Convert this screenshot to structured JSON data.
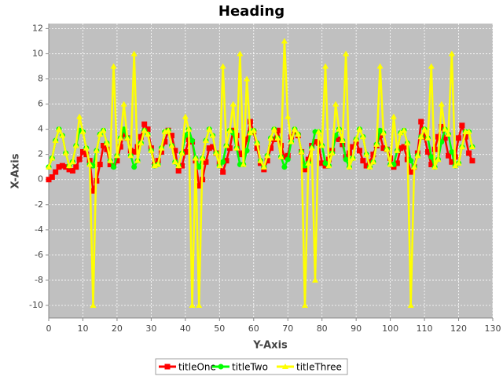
{
  "chart_data": {
    "type": "line",
    "title": "Heading",
    "x_label": "Y-Axis",
    "y_label": "X-Axis",
    "xlim": [
      0,
      130
    ],
    "xticks": [
      0,
      10,
      20,
      30,
      40,
      50,
      60,
      70,
      80,
      90,
      100,
      110,
      120,
      130
    ],
    "ylim": [
      -11,
      12.4
    ],
    "yticks": [
      -10,
      -8,
      -6,
      -4,
      -2,
      0,
      2,
      4,
      6,
      8,
      10,
      12
    ],
    "grid": true,
    "legend": "bottom",
    "x": [
      0,
      1,
      2,
      3,
      4,
      5,
      6,
      7,
      8,
      9,
      10,
      11,
      12,
      13,
      14,
      15,
      16,
      17,
      18,
      19,
      20,
      21,
      22,
      23,
      24,
      25,
      26,
      27,
      28,
      29,
      30,
      31,
      32,
      33,
      34,
      35,
      36,
      37,
      38,
      39,
      40,
      41,
      42,
      43,
      44,
      45,
      46,
      47,
      48,
      49,
      50,
      51,
      52,
      53,
      54,
      55,
      56,
      57,
      58,
      59,
      60,
      61,
      62,
      63,
      64,
      65,
      66,
      67,
      68,
      69,
      70,
      71,
      72,
      73,
      74,
      75,
      76,
      77,
      78,
      79,
      80,
      81,
      82,
      83,
      84,
      85,
      86,
      87,
      88,
      89,
      90,
      91,
      92,
      93,
      94,
      95,
      96,
      97,
      98,
      99,
      100,
      101,
      102,
      103,
      104,
      105,
      106,
      107,
      108,
      109,
      110,
      111,
      112,
      113,
      114,
      115,
      116,
      117,
      118,
      119,
      120,
      121,
      122,
      123,
      124
    ],
    "series": [
      {
        "name": "titleOne",
        "color": "#ff0000",
        "marker": "square",
        "values": [
          0.0,
          0.2,
          0.6,
          1.0,
          1.1,
          1.0,
          0.8,
          0.7,
          1.0,
          1.6,
          2.2,
          2.0,
          1.5,
          -0.9,
          -0.1,
          1.2,
          2.7,
          2.4,
          1.2,
          1.1,
          1.5,
          2.6,
          3.6,
          3.3,
          2.3,
          2.2,
          2.6,
          3.4,
          4.4,
          4.0,
          2.5,
          1.2,
          1.5,
          2.2,
          3.0,
          3.9,
          3.5,
          2.3,
          0.7,
          1.1,
          2.2,
          3.2,
          3.0,
          1.5,
          -0.5,
          0.0,
          1.4,
          2.5,
          2.6,
          2.1,
          1.3,
          0.6,
          1.5,
          2.5,
          3.9,
          3.5,
          2.0,
          2.1,
          3.2,
          4.6,
          3.8,
          2.5,
          1.3,
          0.8,
          1.5,
          2.5,
          3.2,
          3.9,
          2.7,
          1.8,
          1.9,
          3.4,
          3.8,
          3.5,
          2.2,
          0.8,
          1.6,
          2.7,
          3.0,
          2.9,
          1.3,
          1.1,
          1.6,
          2.3,
          3.3,
          3.2,
          2.8,
          1.8,
          2.1,
          2.6,
          3.0,
          2.3,
          1.5,
          1.1,
          1.4,
          2.0,
          2.7,
          3.5,
          2.5,
          2.4,
          1.7,
          1.0,
          1.3,
          2.5,
          2.6,
          1.6,
          0.6,
          1.0,
          2.1,
          4.6,
          3.4,
          2.2,
          1.2,
          2.4,
          3.4,
          4.2,
          3.3,
          1.9,
          1.4,
          1.8,
          3.3,
          4.3,
          3.4,
          2.1,
          1.5
        ]
      },
      {
        "name": "titleTwo",
        "color": "#00ff00",
        "marker": "circle",
        "values": [
          1.0,
          1.7,
          3.1,
          4.0,
          3.5,
          2.1,
          1.1,
          1.4,
          2.7,
          3.9,
          3.8,
          2.5,
          1.2,
          1.1,
          2.3,
          3.6,
          3.9,
          2.9,
          1.5,
          1.0,
          1.9,
          3.3,
          4.0,
          3.3,
          1.9,
          1.0,
          1.5,
          2.9,
          3.9,
          3.6,
          2.3,
          1.1,
          1.2,
          2.5,
          3.8,
          3.9,
          2.7,
          1.4,
          1.1,
          2.1,
          3.5,
          4.0,
          3.1,
          1.7,
          1.0,
          1.7,
          3.1,
          4.0,
          3.5,
          2.1,
          1.1,
          1.4,
          2.7,
          3.9,
          3.7,
          2.5,
          1.2,
          1.2,
          2.3,
          3.7,
          3.9,
          2.9,
          1.5,
          1.0,
          1.9,
          3.3,
          4.0,
          3.3,
          1.8,
          1.0,
          1.6,
          3.0,
          4.0,
          3.6,
          2.2,
          1.1,
          1.3,
          2.5,
          3.8,
          3.8,
          2.7,
          1.3,
          1.1,
          2.1,
          3.5,
          4.0,
          3.1,
          1.6,
          1.0,
          1.7,
          3.2,
          4.0,
          3.4,
          2.0,
          1.0,
          1.4,
          2.8,
          3.9,
          3.7,
          2.4,
          1.2,
          1.2,
          2.3,
          3.7,
          3.9,
          2.9,
          1.5,
          1.0,
          1.9,
          3.4,
          4.0,
          3.3,
          1.8,
          1.0,
          1.6,
          3.0,
          4.0,
          3.6,
          2.2,
          1.1,
          1.3,
          2.6,
          3.8,
          3.8,
          2.6
        ]
      },
      {
        "name": "titleThree",
        "color": "#ffff00",
        "marker": "triangle",
        "values": [
          1.0,
          1.7,
          3.1,
          4.0,
          3.5,
          2.1,
          1.1,
          1.4,
          2.7,
          5,
          3.8,
          2.5,
          1.2,
          -10,
          2.3,
          3.6,
          3.9,
          2.9,
          1.5,
          9,
          1.9,
          3.3,
          6,
          3.3,
          1.9,
          10,
          1.5,
          2.9,
          3.9,
          3.6,
          2.3,
          1.1,
          1.2,
          2.5,
          3.8,
          3.9,
          2.7,
          1.4,
          1.1,
          2.1,
          5,
          4.0,
          -10,
          1.7,
          -10,
          1.7,
          3.1,
          4.0,
          3.5,
          2.1,
          1.1,
          9,
          2.7,
          3.9,
          6,
          2.5,
          10,
          1.2,
          8,
          3.7,
          3.9,
          2.9,
          1.5,
          1.0,
          1.9,
          3.3,
          4.0,
          3.3,
          1.8,
          11,
          5,
          3.0,
          4.0,
          3.6,
          2.2,
          -10,
          1.3,
          2.5,
          -8,
          3.8,
          2.7,
          9,
          1.1,
          2.1,
          6,
          4.0,
          3.1,
          10,
          1.0,
          1.7,
          3.2,
          4.0,
          3.4,
          2.0,
          1.0,
          1.4,
          2.8,
          9,
          3.7,
          2.4,
          1.2,
          5,
          2.3,
          3.7,
          3.9,
          2.9,
          -10,
          1.0,
          1.9,
          3.4,
          4.0,
          3.3,
          9,
          1.0,
          1.6,
          6,
          4.0,
          3.6,
          10,
          1.1,
          1.3,
          2.6,
          3.8,
          3.8,
          2.6
        ]
      }
    ]
  }
}
